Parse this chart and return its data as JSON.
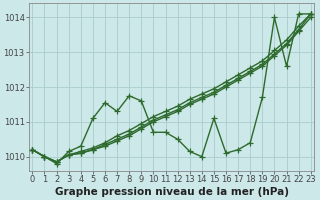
{
  "x": [
    0,
    1,
    2,
    3,
    4,
    5,
    6,
    7,
    8,
    9,
    10,
    11,
    12,
    13,
    14,
    15,
    16,
    17,
    18,
    19,
    20,
    21,
    22,
    23
  ],
  "s_volatile": [
    1010.2,
    1010.0,
    1009.8,
    1010.15,
    1010.3,
    1011.1,
    1011.55,
    1011.3,
    1011.75,
    1011.6,
    1010.7,
    1010.7,
    1010.5,
    1010.15,
    1010.0,
    1011.1,
    1010.1,
    1010.2,
    1010.4,
    1011.7,
    1014.0,
    1012.6,
    1014.1,
    1014.1
  ],
  "s_line1": [
    1010.2,
    1010.0,
    1009.85,
    1010.05,
    1010.1,
    1010.2,
    1010.3,
    1010.45,
    1010.6,
    1010.8,
    1011.0,
    1011.15,
    1011.3,
    1011.5,
    1011.65,
    1011.8,
    1012.0,
    1012.2,
    1012.4,
    1012.6,
    1012.9,
    1013.2,
    1013.6,
    1014.0
  ],
  "s_line2": [
    1010.2,
    1010.0,
    1009.85,
    1010.05,
    1010.1,
    1010.2,
    1010.35,
    1010.5,
    1010.65,
    1010.85,
    1011.05,
    1011.2,
    1011.35,
    1011.55,
    1011.7,
    1011.85,
    1012.05,
    1012.25,
    1012.45,
    1012.65,
    1012.95,
    1013.25,
    1013.65,
    1014.1
  ],
  "s_line3": [
    1010.2,
    1010.0,
    1009.85,
    1010.05,
    1010.15,
    1010.25,
    1010.4,
    1010.6,
    1010.75,
    1010.95,
    1011.15,
    1011.3,
    1011.45,
    1011.65,
    1011.8,
    1011.95,
    1012.15,
    1012.35,
    1012.55,
    1012.75,
    1013.05,
    1013.35,
    1013.75,
    1014.1
  ],
  "line_color": "#2d6a2d",
  "marker": "+",
  "markersize": 4,
  "linewidth": 1.0,
  "bg_color": "#cce8e8",
  "grid_color": "#aacccc",
  "xlabel": "Graphe pression niveau de la mer (hPa)",
  "xlabel_fontsize": 7.5,
  "ylim": [
    1009.6,
    1014.4
  ],
  "yticks": [
    1010,
    1011,
    1012,
    1013,
    1014
  ],
  "xticks": [
    0,
    1,
    2,
    3,
    4,
    5,
    6,
    7,
    8,
    9,
    10,
    11,
    12,
    13,
    14,
    15,
    16,
    17,
    18,
    19,
    20,
    21,
    22,
    23
  ],
  "tick_fontsize": 6,
  "axis_color": "#444444"
}
